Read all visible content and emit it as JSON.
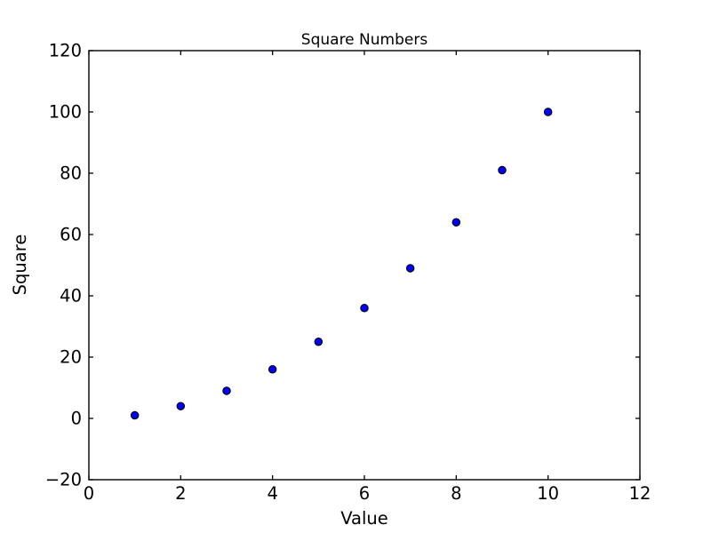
{
  "figure": {
    "background": "#ffffff"
  },
  "chart_data": {
    "type": "scatter",
    "title": "Square Numbers",
    "xlabel": "Value",
    "ylabel": "Square",
    "x": [
      1,
      2,
      3,
      4,
      5,
      6,
      7,
      8,
      9,
      10
    ],
    "y": [
      1,
      4,
      9,
      16,
      25,
      36,
      49,
      64,
      81,
      100
    ],
    "xlim": [
      0,
      12
    ],
    "ylim": [
      -20,
      120
    ],
    "xticks": [
      0,
      2,
      4,
      6,
      8,
      10,
      12
    ],
    "xtick_labels": [
      "0",
      "2",
      "4",
      "6",
      "8",
      "10",
      "12"
    ],
    "yticks": [
      -20,
      0,
      20,
      40,
      60,
      80,
      100,
      120
    ],
    "ytick_labels": [
      "−20",
      "0",
      "20",
      "40",
      "60",
      "80",
      "100",
      "120"
    ],
    "grid": false,
    "legend": null,
    "marker": {
      "shape": "circle",
      "fill": "#0000ff",
      "edge": "#000000"
    },
    "axis_color": "#000000",
    "text_color": "#000000"
  }
}
